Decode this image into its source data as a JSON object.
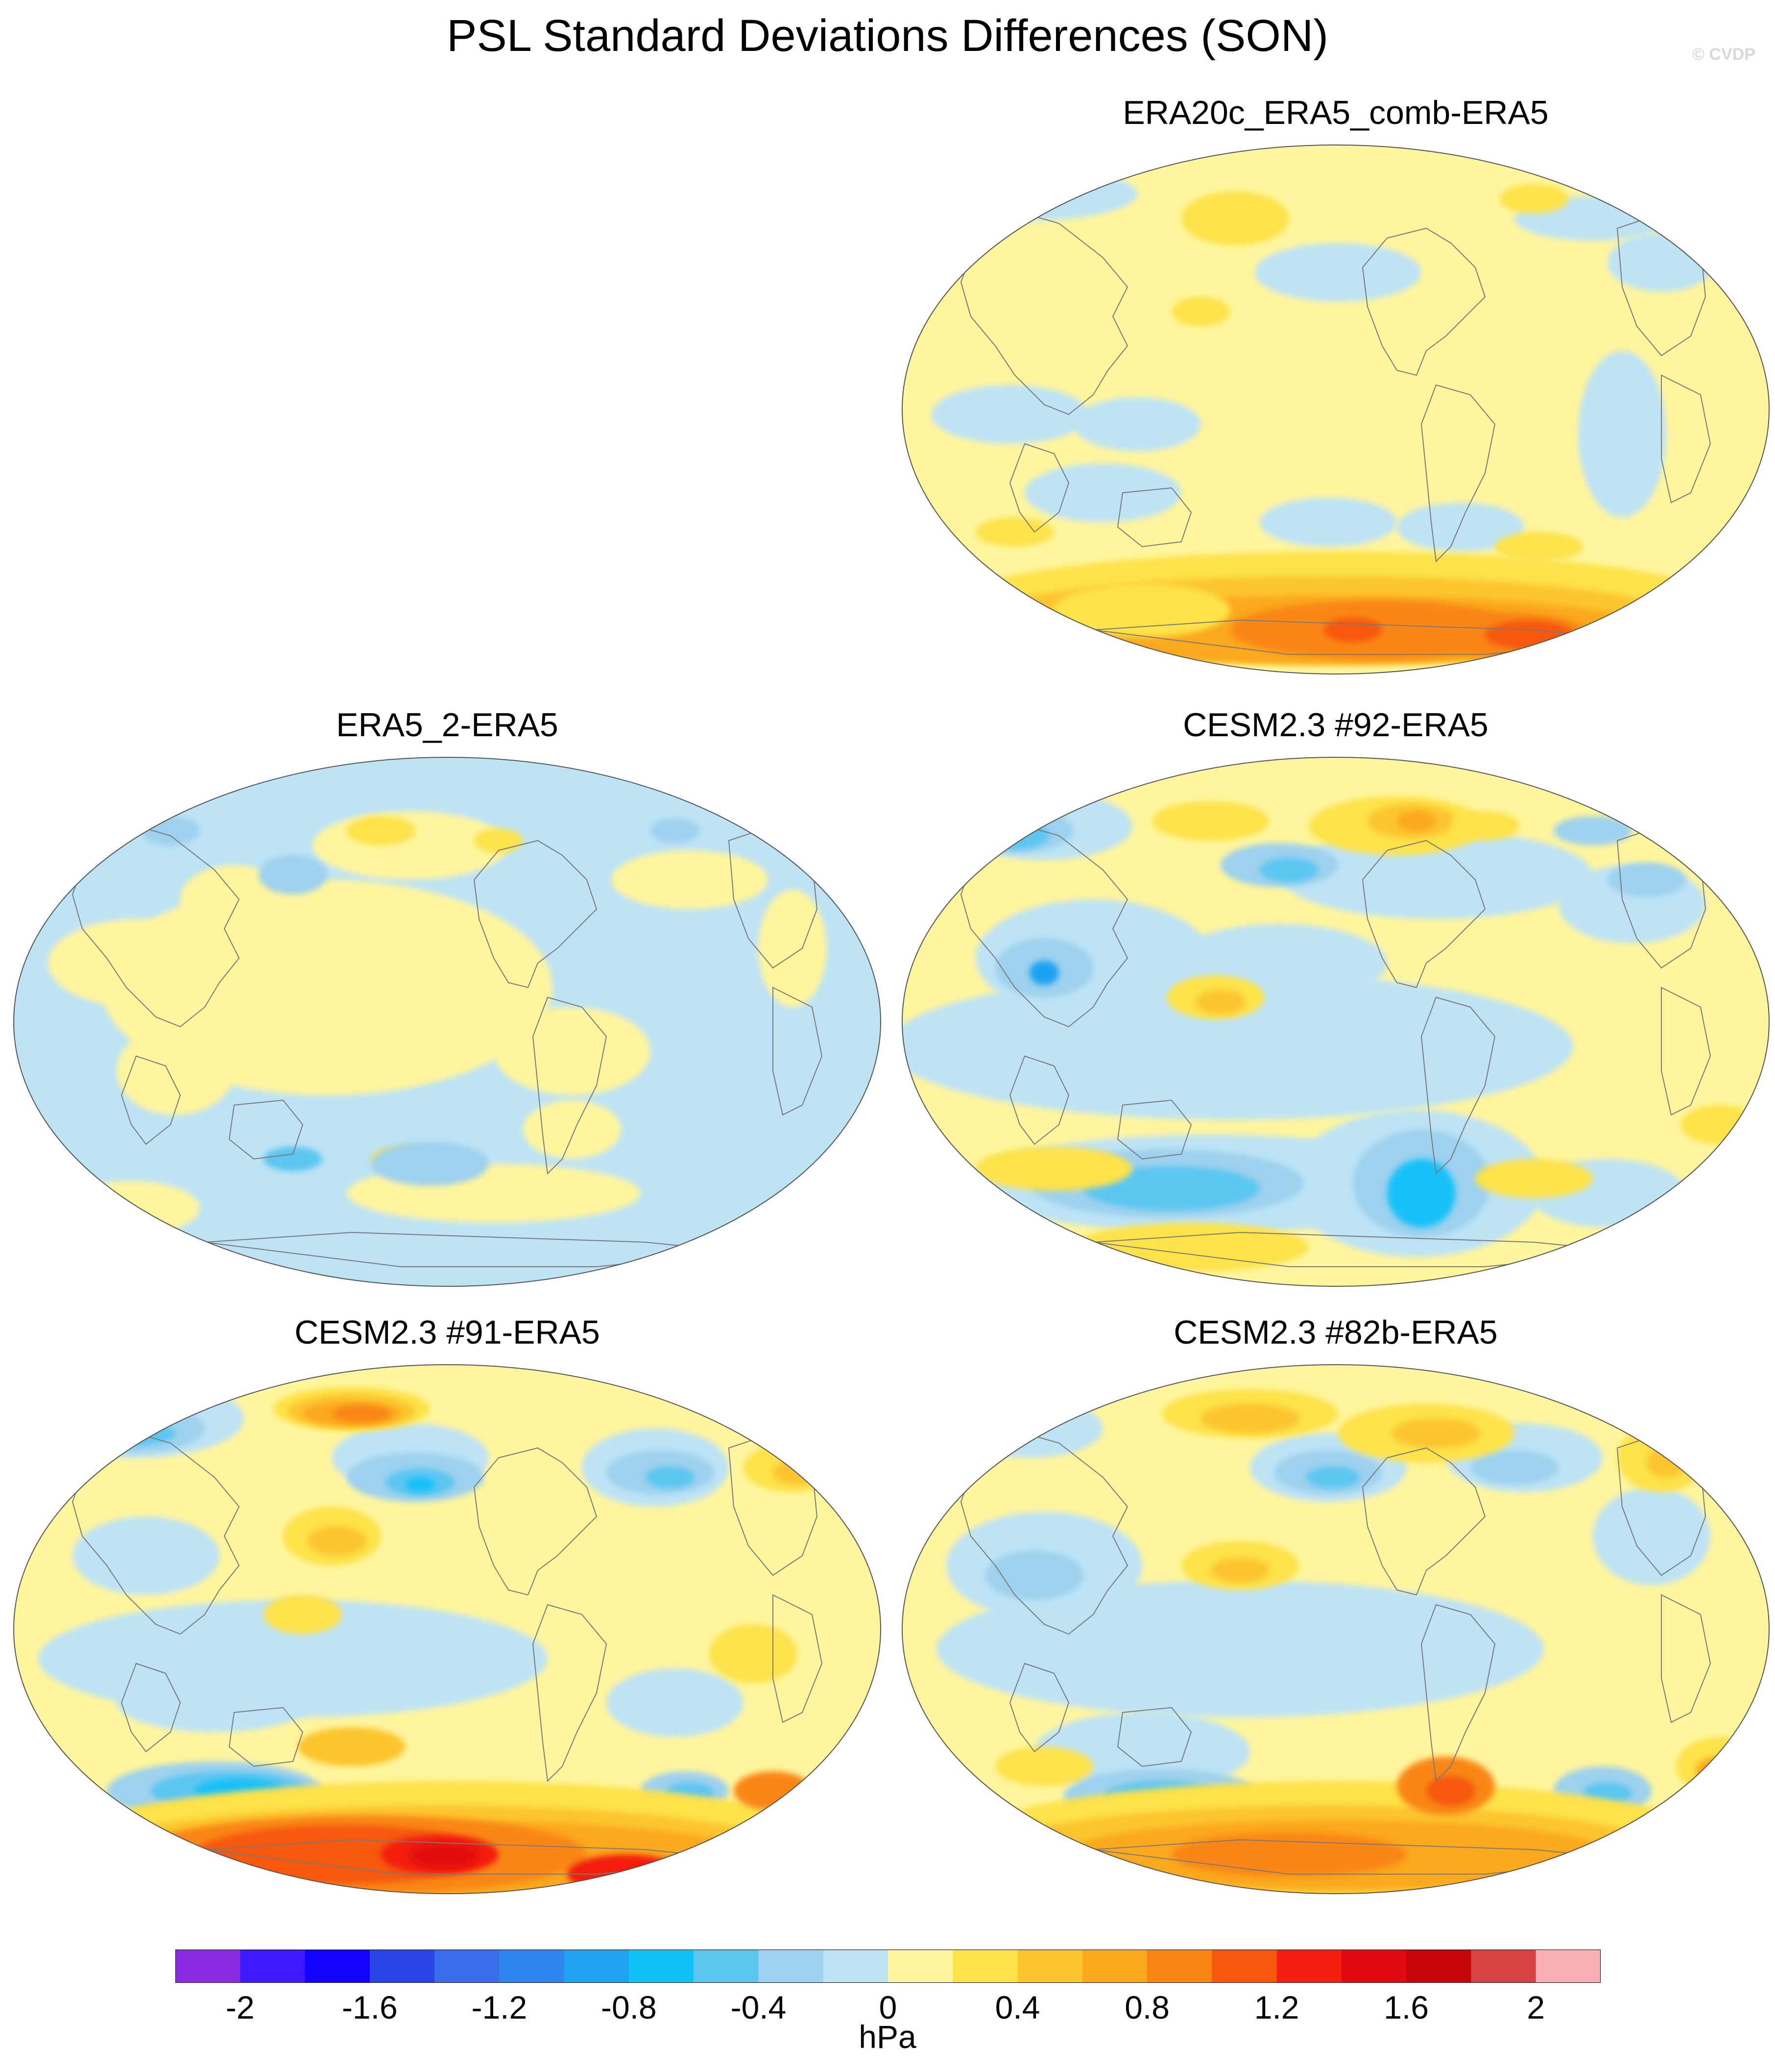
{
  "title": "PSL Standard Deviations Differences (SON)",
  "watermark": "© CVDP",
  "panels": [
    {
      "title": "ERA20c_ERA5_comb-ERA5",
      "pattern": "reanalysis_comb"
    },
    {
      "title": "ERA5_2-ERA5",
      "pattern": "reanalysis_small"
    },
    {
      "title": "CESM2.3 #92-ERA5",
      "pattern": "model_mixed"
    },
    {
      "title": "CESM2.3 #91-ERA5",
      "pattern": "model_strong"
    },
    {
      "title": "CESM2.3 #82b-ERA5",
      "pattern": "model_moderate"
    }
  ],
  "colorbar": {
    "colors": [
      "#8a2be2",
      "#3f1aff",
      "#1300ff",
      "#2a45e6",
      "#3a6de8",
      "#2f86ee",
      "#1fa2f2",
      "#12c1f8",
      "#5cc6f1",
      "#9dd1ee",
      "#bde3f5",
      "#fff59d",
      "#fde24a",
      "#fcc52e",
      "#fba81a",
      "#f98613",
      "#f6580e",
      "#f31e0f",
      "#e10a10",
      "#c7060b",
      "#d84344",
      "#f8b0b4"
    ],
    "tick_labels": [
      "-2",
      "-1.6",
      "-1.2",
      "-0.8",
      "-0.4",
      "0",
      "0.4",
      "0.8",
      "1.2",
      "1.6",
      "2"
    ],
    "units": "hPa"
  }
}
